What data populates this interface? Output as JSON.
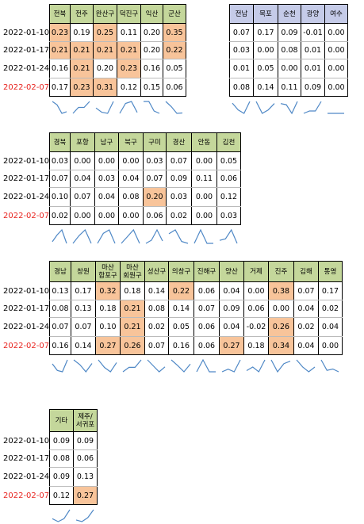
{
  "dates": [
    "2022-01-10",
    "2022-01-17",
    "2022-01-24",
    "2022-02-07"
  ],
  "colors": {
    "header_green": "#c4d79b",
    "header_lavender": "#c5cbe8",
    "highlight_orange": "#f8c49a",
    "last_date_red": "#e8231f",
    "sparkline_blue": "#4f88c6"
  },
  "blocks": [
    {
      "id": "jeonbuk",
      "header_color": "green",
      "columns": [
        "전북",
        "전주",
        "완산구",
        "덕진구",
        "익산",
        "군산"
      ],
      "rows": [
        [
          "0.23",
          "0.19",
          "0.25",
          "0.11",
          "0.20",
          "0.35"
        ],
        [
          "0.21",
          "0.21",
          "0.21",
          "0.21",
          "0.20",
          "0.22"
        ],
        [
          "0.16",
          "0.21",
          "0.20",
          "0.23",
          "0.16",
          "0.05"
        ],
        [
          "0.17",
          "0.23",
          "0.31",
          "0.12",
          "0.15",
          "0.06"
        ]
      ],
      "highlight": [
        [
          1,
          0,
          1,
          0,
          0,
          1
        ],
        [
          1,
          1,
          1,
          1,
          0,
          1
        ],
        [
          0,
          1,
          0,
          1,
          0,
          0
        ],
        [
          0,
          1,
          1,
          0,
          0,
          0
        ]
      ]
    },
    {
      "id": "jeonnam",
      "header_color": "lavender",
      "columns": [
        "전남",
        "목포",
        "순천",
        "광양",
        "여수"
      ],
      "rows": [
        [
          "0.07",
          "0.17",
          "0.09",
          "-0.01",
          "0.00"
        ],
        [
          "0.03",
          "0.00",
          "0.08",
          "0.01",
          "0.00"
        ],
        [
          "0.01",
          "0.05",
          "0.00",
          "0.01",
          "0.00"
        ],
        [
          "0.08",
          "0.14",
          "0.11",
          "0.09",
          "0.00"
        ]
      ],
      "highlight": [
        [
          0,
          0,
          0,
          0,
          0
        ],
        [
          0,
          0,
          0,
          0,
          0
        ],
        [
          0,
          0,
          0,
          0,
          0
        ],
        [
          0,
          0,
          0,
          0,
          0
        ]
      ]
    },
    {
      "id": "gyeongbuk",
      "header_color": "green",
      "columns": [
        "경북",
        "포항",
        "남구",
        "북구",
        "구미",
        "경산",
        "안동",
        "김천"
      ],
      "rows": [
        [
          "0.03",
          "0.00",
          "0.00",
          "0.00",
          "0.03",
          "0.07",
          "0.00",
          "0.05"
        ],
        [
          "0.07",
          "0.04",
          "0.03",
          "0.04",
          "0.07",
          "0.09",
          "0.11",
          "0.06"
        ],
        [
          "0.10",
          "0.07",
          "0.04",
          "0.08",
          "0.20",
          "0.03",
          "0.00",
          "0.12"
        ],
        [
          "0.02",
          "0.00",
          "0.00",
          "0.00",
          "0.06",
          "0.02",
          "0.00",
          "0.03"
        ]
      ],
      "highlight": [
        [
          0,
          0,
          0,
          0,
          0,
          0,
          0,
          0
        ],
        [
          0,
          0,
          0,
          0,
          0,
          0,
          0,
          0
        ],
        [
          0,
          0,
          0,
          0,
          1,
          0,
          0,
          0
        ],
        [
          0,
          0,
          0,
          0,
          0,
          0,
          0,
          0
        ]
      ]
    },
    {
      "id": "gyeongnam",
      "header_color": "green",
      "columns": [
        "경남",
        "창원",
        "마산\n합포구",
        "마산\n회원구",
        "성산구",
        "의창구",
        "진해구",
        "양산",
        "거제",
        "진주",
        "김해",
        "통영"
      ],
      "rows": [
        [
          "0.13",
          "0.17",
          "0.32",
          "0.18",
          "0.14",
          "0.22",
          "0.06",
          "0.04",
          "0.00",
          "0.38",
          "0.07",
          "0.17"
        ],
        [
          "0.08",
          "0.13",
          "0.18",
          "0.21",
          "0.08",
          "0.14",
          "0.07",
          "0.09",
          "0.06",
          "0.00",
          "0.04",
          "0.02"
        ],
        [
          "0.07",
          "0.07",
          "0.10",
          "0.21",
          "0.02",
          "0.05",
          "0.06",
          "0.04",
          "-0.02",
          "0.26",
          "0.02",
          "0.04"
        ],
        [
          "0.16",
          "0.14",
          "0.27",
          "0.26",
          "0.07",
          "0.16",
          "0.06",
          "0.27",
          "0.18",
          "0.34",
          "0.04",
          "0.00"
        ]
      ],
      "highlight": [
        [
          0,
          0,
          1,
          0,
          0,
          1,
          0,
          0,
          0,
          1,
          0,
          0
        ],
        [
          0,
          0,
          0,
          1,
          0,
          0,
          0,
          0,
          0,
          0,
          0,
          0
        ],
        [
          0,
          0,
          0,
          1,
          0,
          0,
          0,
          0,
          0,
          1,
          0,
          0
        ],
        [
          0,
          0,
          1,
          1,
          0,
          0,
          0,
          1,
          0,
          1,
          0,
          0
        ]
      ]
    },
    {
      "id": "etc",
      "header_color": "green",
      "columns": [
        "기타",
        "제주/\n서귀포"
      ],
      "rows": [
        [
          "0.09",
          "0.09"
        ],
        [
          "0.08",
          "0.06"
        ],
        [
          "0.09",
          "0.13"
        ],
        [
          "0.12",
          "0.27"
        ]
      ],
      "highlight": [
        [
          0,
          0
        ],
        [
          0,
          0
        ],
        [
          0,
          0
        ],
        [
          0,
          1
        ]
      ]
    }
  ]
}
